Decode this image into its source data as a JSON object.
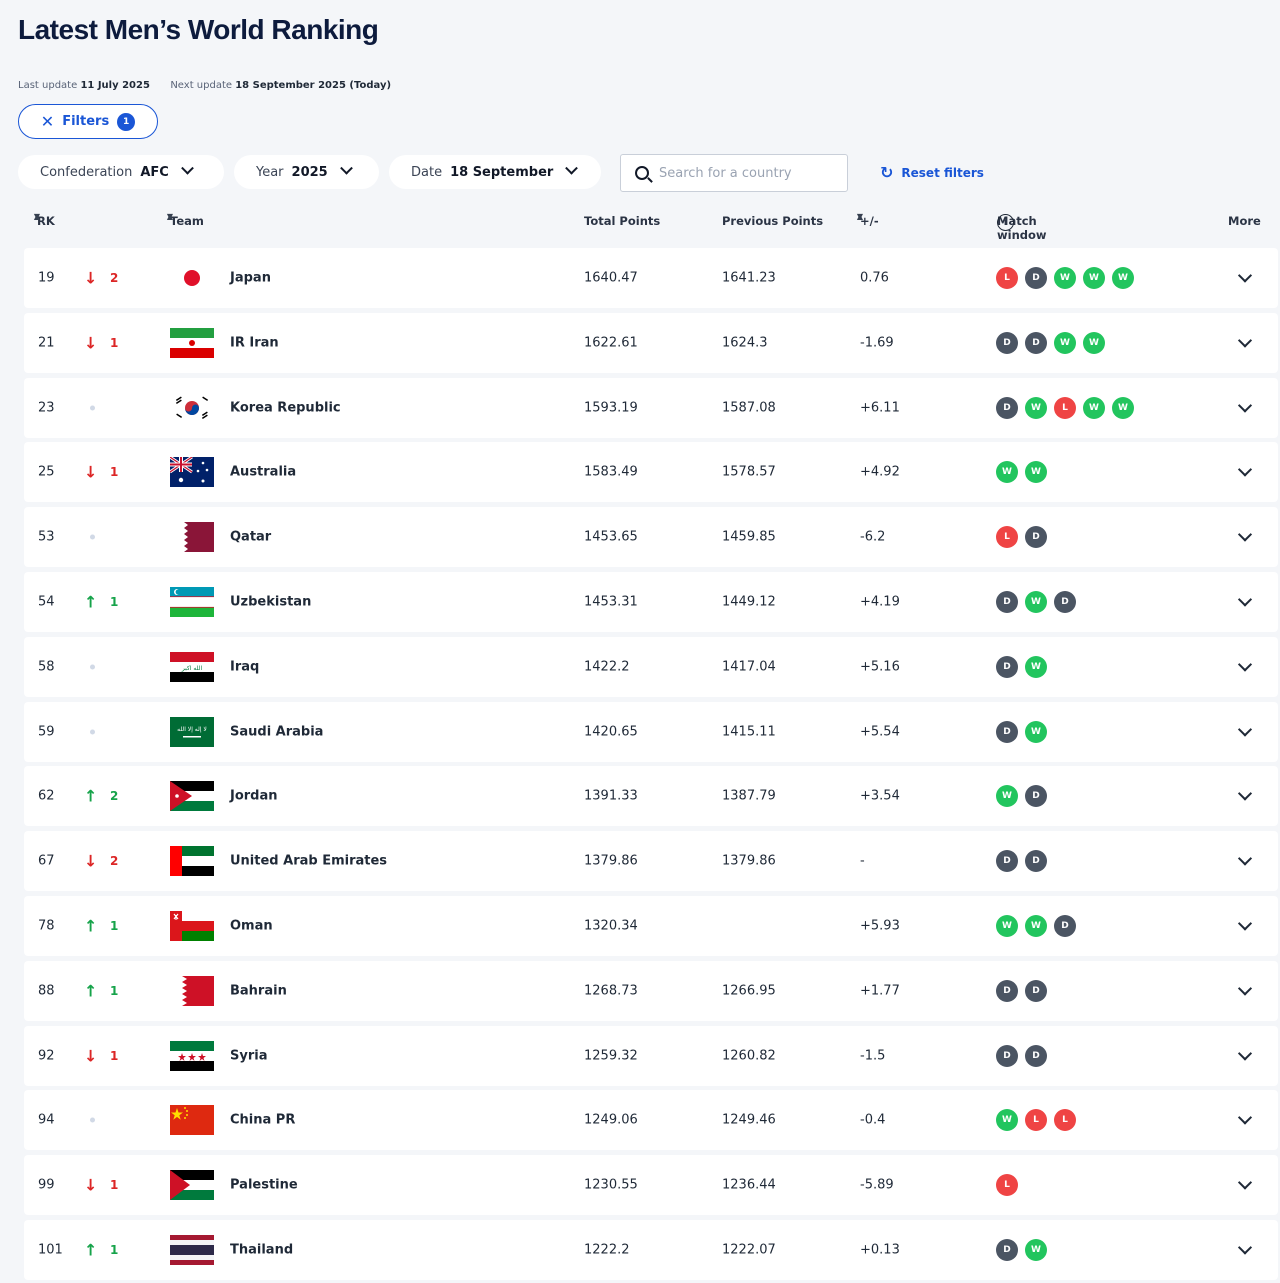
{
  "page": {
    "title": "Latest Men’s World Ranking",
    "last_update_label": "Last update",
    "last_update": "11 July 2025",
    "next_update_label": "Next update",
    "next_update": "18 September 2025 (Today)"
  },
  "filters": {
    "label": "Filters",
    "count": "1"
  },
  "dropdowns": {
    "confederation": {
      "label": "Confederation",
      "value": "AFC"
    },
    "year": {
      "label": "Year",
      "value": "2025"
    },
    "date": {
      "label": "Date",
      "value": "18 September"
    }
  },
  "search": {
    "placeholder": "Search for a country"
  },
  "reset": {
    "label": "Reset filters"
  },
  "columns": {
    "rk": "RK",
    "team": "Team",
    "total": "Total Points",
    "prev": "Previous Points",
    "diff": "+/-",
    "match": "Match window",
    "more": "More"
  },
  "colors": {
    "accent": "#1a56d6",
    "win": "#22c55e",
    "draw": "#4b5563",
    "loss": "#ef4444"
  },
  "rows": [
    {
      "rank": "19",
      "dir": "down",
      "move": "2",
      "flag": "japan",
      "team": "Japan",
      "total": "1640.47",
      "prev": "1641.23",
      "diff": "0.76",
      "matches": [
        "L",
        "D",
        "W",
        "W",
        "W"
      ]
    },
    {
      "rank": "21",
      "dir": "down",
      "move": "1",
      "flag": "iran",
      "team": "IR Iran",
      "total": "1622.61",
      "prev": "1624.3",
      "diff": "-1.69",
      "matches": [
        "D",
        "D",
        "W",
        "W"
      ]
    },
    {
      "rank": "23",
      "dir": "none",
      "move": "",
      "flag": "korea",
      "team": "Korea Republic",
      "total": "1593.19",
      "prev": "1587.08",
      "diff": "+6.11",
      "matches": [
        "D",
        "W",
        "L",
        "W",
        "W"
      ]
    },
    {
      "rank": "25",
      "dir": "down",
      "move": "1",
      "flag": "australia",
      "team": "Australia",
      "total": "1583.49",
      "prev": "1578.57",
      "diff": "+4.92",
      "matches": [
        "W",
        "W"
      ]
    },
    {
      "rank": "53",
      "dir": "none",
      "move": "",
      "flag": "qatar",
      "team": "Qatar",
      "total": "1453.65",
      "prev": "1459.85",
      "diff": "-6.2",
      "matches": [
        "L",
        "D"
      ]
    },
    {
      "rank": "54",
      "dir": "up",
      "move": "1",
      "flag": "uzbekistan",
      "team": "Uzbekistan",
      "total": "1453.31",
      "prev": "1449.12",
      "diff": "+4.19",
      "matches": [
        "D",
        "W",
        "D"
      ]
    },
    {
      "rank": "58",
      "dir": "none",
      "move": "",
      "flag": "iraq",
      "team": "Iraq",
      "total": "1422.2",
      "prev": "1417.04",
      "diff": "+5.16",
      "matches": [
        "D",
        "W"
      ]
    },
    {
      "rank": "59",
      "dir": "none",
      "move": "",
      "flag": "saudi",
      "team": "Saudi Arabia",
      "total": "1420.65",
      "prev": "1415.11",
      "diff": "+5.54",
      "matches": [
        "D",
        "W"
      ]
    },
    {
      "rank": "62",
      "dir": "up",
      "move": "2",
      "flag": "jordan",
      "team": "Jordan",
      "total": "1391.33",
      "prev": "1387.79",
      "diff": "+3.54",
      "matches": [
        "W",
        "D"
      ]
    },
    {
      "rank": "67",
      "dir": "down",
      "move": "2",
      "flag": "uae",
      "team": "United Arab Emirates",
      "total": "1379.86",
      "prev": "1379.86",
      "diff": "-",
      "matches": [
        "D",
        "D"
      ]
    },
    {
      "rank": "78",
      "dir": "up",
      "move": "1",
      "flag": "oman",
      "team": "Oman",
      "total": "1320.34",
      "prev": "",
      "diff": "+5.93",
      "matches": [
        "W",
        "W",
        "D"
      ]
    },
    {
      "rank": "88",
      "dir": "up",
      "move": "1",
      "flag": "bahrain",
      "team": "Bahrain",
      "total": "1268.73",
      "prev": "1266.95",
      "diff": "+1.77",
      "matches": [
        "D",
        "D"
      ]
    },
    {
      "rank": "92",
      "dir": "down",
      "move": "1",
      "flag": "syria",
      "team": "Syria",
      "total": "1259.32",
      "prev": "1260.82",
      "diff": "-1.5",
      "matches": [
        "D",
        "D"
      ]
    },
    {
      "rank": "94",
      "dir": "none",
      "move": "",
      "flag": "china",
      "team": "China PR",
      "total": "1249.06",
      "prev": "1249.46",
      "diff": "-0.4",
      "matches": [
        "W",
        "L",
        "L"
      ]
    },
    {
      "rank": "99",
      "dir": "down",
      "move": "1",
      "flag": "palestine",
      "team": "Palestine",
      "total": "1230.55",
      "prev": "1236.44",
      "diff": "-5.89",
      "matches": [
        "L"
      ]
    },
    {
      "rank": "101",
      "dir": "up",
      "move": "1",
      "flag": "thailand",
      "team": "Thailand",
      "total": "1222.2",
      "prev": "1222.07",
      "diff": "+0.13",
      "matches": [
        "D",
        "W"
      ]
    }
  ]
}
